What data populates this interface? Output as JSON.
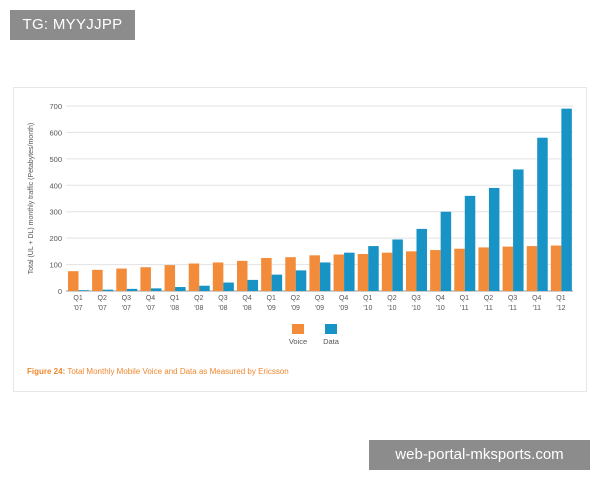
{
  "watermark_top": "TG: MYYJJPP",
  "watermark_bottom": "web-portal-mksports.com",
  "colors": {
    "voice": "#f28c3a",
    "data": "#1793c6",
    "caption": "#f0872d"
  },
  "chart_data": {
    "type": "bar",
    "title": "",
    "xlabel": "",
    "ylabel": "Total (UL + DL) monthly traffic (Petabytes/month)",
    "ylim": [
      0,
      700
    ],
    "yticks": [
      0,
      100,
      200,
      300,
      400,
      500,
      600,
      700
    ],
    "categories": [
      [
        "Q1",
        "'07"
      ],
      [
        "Q2",
        "'07"
      ],
      [
        "Q3",
        "'07"
      ],
      [
        "Q4",
        "'07"
      ],
      [
        "Q1",
        "'08"
      ],
      [
        "Q2",
        "'08"
      ],
      [
        "Q3",
        "'08"
      ],
      [
        "Q4",
        "'08"
      ],
      [
        "Q1",
        "'09"
      ],
      [
        "Q2",
        "'09"
      ],
      [
        "Q3",
        "'09"
      ],
      [
        "Q4",
        "'09"
      ],
      [
        "Q1",
        "'10"
      ],
      [
        "Q2",
        "'10"
      ],
      [
        "Q3",
        "'10"
      ],
      [
        "Q4",
        "'10"
      ],
      [
        "Q1",
        "'11"
      ],
      [
        "Q2",
        "'11"
      ],
      [
        "Q3",
        "'11"
      ],
      [
        "Q4",
        "'11"
      ],
      [
        "Q1",
        "'12"
      ]
    ],
    "series": [
      {
        "name": "Voice",
        "values": [
          75,
          80,
          85,
          90,
          98,
          104,
          108,
          114,
          125,
          128,
          135,
          138,
          140,
          145,
          150,
          155,
          160,
          165,
          168,
          170,
          172
        ]
      },
      {
        "name": "Data",
        "values": [
          3,
          5,
          8,
          10,
          15,
          20,
          32,
          42,
          62,
          78,
          108,
          145,
          170,
          195,
          235,
          300,
          360,
          390,
          460,
          580,
          690
        ]
      }
    ],
    "legend": [
      "Voice",
      "Data"
    ],
    "legend_position": "bottom",
    "grid": true
  },
  "caption": {
    "label": "Figure 24:",
    "text": "Total Monthly Mobile Voice and Data as Measured by Ericsson"
  }
}
